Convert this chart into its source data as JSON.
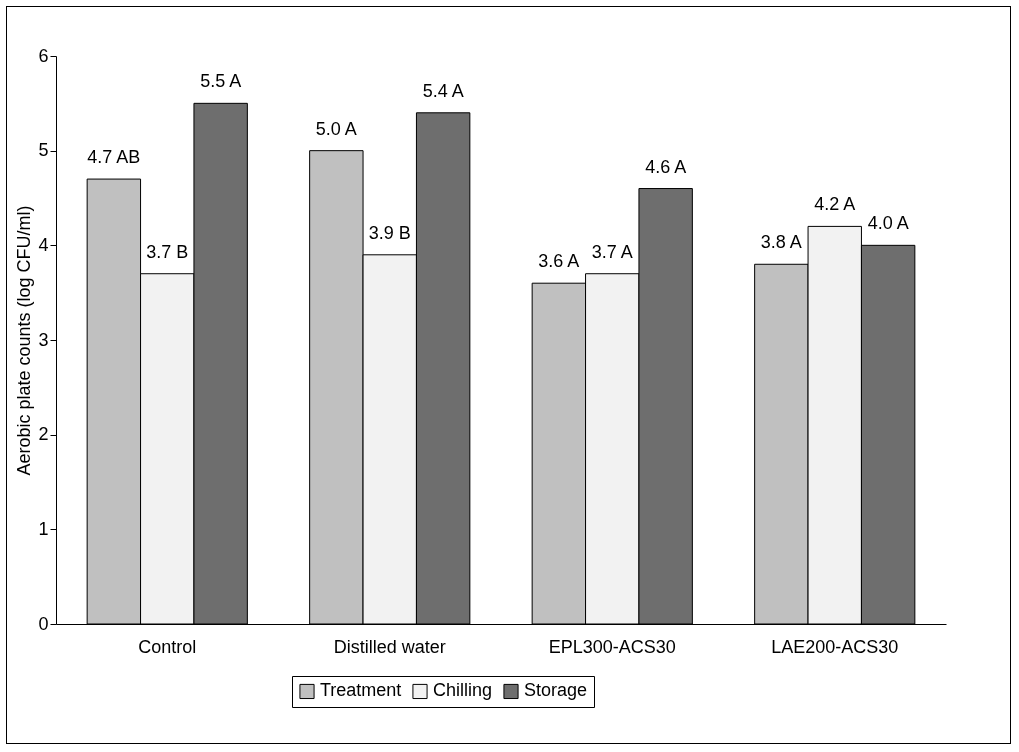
{
  "chart_data": {
    "type": "bar",
    "ylabel": "Aerobic plate counts (log CFU/ml)",
    "categories": [
      "Control",
      "Distilled water",
      "EPL300-ACS30",
      "LAE200-ACS30"
    ],
    "series": [
      {
        "name": "Treatment",
        "color": "#c0c0c0",
        "values": [
          4.7,
          5.0,
          3.6,
          3.8
        ],
        "value_labels": [
          "4.7 AB",
          "5.0 A",
          "3.6 A",
          "3.8 A"
        ]
      },
      {
        "name": "Chilling",
        "color": "#f2f2f2",
        "values": [
          3.7,
          3.9,
          3.7,
          4.2
        ],
        "value_labels": [
          "3.7 B",
          "3.9 B",
          "3.7 A",
          "4.2 A"
        ]
      },
      {
        "name": "Storage",
        "color": "#6e6e6e",
        "values": [
          5.5,
          5.4,
          4.6,
          4.0
        ],
        "value_labels": [
          "5.5 A",
          "5.4 A",
          "4.6 A",
          "4.0 A"
        ]
      }
    ],
    "ylim": [
      0,
      6
    ],
    "yticks": [
      0,
      1,
      2,
      3,
      4,
      5,
      6
    ],
    "legend": "bottom"
  }
}
